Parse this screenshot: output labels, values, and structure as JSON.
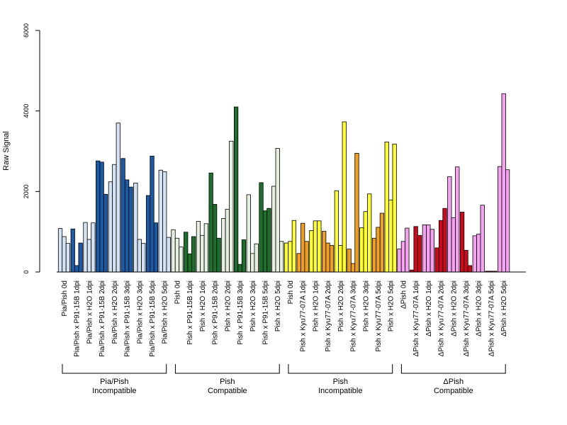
{
  "chart_data": {
    "type": "bar",
    "ylabel": "Raw Signal",
    "xlabel": "",
    "title": "",
    "ylim": [
      0,
      6000
    ],
    "yticks": [
      0,
      2000,
      4000,
      6000
    ],
    "bars_per_category": 3,
    "categories": [
      {
        "label": "Pia/Pish 0d",
        "values": [
          1080,
          880,
          710
        ],
        "color": "#d3e3f3"
      },
      {
        "label": "Pia/Pish x P91-15B 1dpi",
        "values": [
          1070,
          160,
          720
        ],
        "color": "#1c5aa6"
      },
      {
        "label": "Pia/Pish x H2O 1dpi",
        "values": [
          1230,
          810,
          1220
        ],
        "color": "#d3e3f3"
      },
      {
        "label": "Pia/Pish x P91-15B 2dpi",
        "values": [
          2760,
          2730,
          1930
        ],
        "color": "#1c5aa6"
      },
      {
        "label": "Pia/Pish x H2O 2dpi",
        "values": [
          2240,
          2670,
          3700
        ],
        "color": "#d3e3f3"
      },
      {
        "label": "Pia/Pish x P91-15B 3dpi",
        "values": [
          2820,
          2290,
          2110
        ],
        "color": "#1c5aa6"
      },
      {
        "label": "Pia/Pish x H2O 3dpi",
        "values": [
          2210,
          810,
          710
        ],
        "color": "#d3e3f3"
      },
      {
        "label": "Pia/Pish x P91-15B 5dpi",
        "values": [
          1900,
          2880,
          1220
        ],
        "color": "#1c5aa6"
      },
      {
        "label": "Pia/Pish x H2O 5dpi",
        "values": [
          2530,
          2490,
          860
        ],
        "color": "#d3e3f3"
      },
      {
        "label": "Pish 0d",
        "values": [
          1050,
          840,
          620
        ],
        "color": "#e5f0e1"
      },
      {
        "label": "Pish x P91-15B 1dpi",
        "values": [
          990,
          450,
          880
        ],
        "color": "#1e6e2e"
      },
      {
        "label": "Pish x H2O 1dpi",
        "values": [
          1260,
          910,
          1200
        ],
        "color": "#e5f0e1"
      },
      {
        "label": "Pish x P91-15B 2dpi",
        "values": [
          2460,
          1680,
          840
        ],
        "color": "#1e6e2e"
      },
      {
        "label": "Pish x H2O 2dpi",
        "values": [
          1330,
          1560,
          3250
        ],
        "color": "#e5f0e1"
      },
      {
        "label": "Pish x P91-15B 3dpi",
        "values": [
          4100,
          190,
          800
        ],
        "color": "#1e6e2e"
      },
      {
        "label": "Pish x H2O 3dpi",
        "values": [
          1920,
          460,
          700
        ],
        "color": "#e5f0e1"
      },
      {
        "label": "Pish x P91-15B 5dpi",
        "values": [
          2220,
          1520,
          1580
        ],
        "color": "#1e6e2e"
      },
      {
        "label": "Pish x H2O 5dpi",
        "values": [
          2130,
          3070,
          760
        ],
        "color": "#e5f0e1"
      },
      {
        "label": "Pish 0d",
        "values": [
          720,
          760,
          1280
        ],
        "color": "#ffff33"
      },
      {
        "label": "Pish x Kyu77-07A 1dpi",
        "values": [
          460,
          1210,
          760
        ],
        "color": "#f0a020"
      },
      {
        "label": "Pish x H2O 1dpi",
        "values": [
          1030,
          1270,
          1270
        ],
        "color": "#ffff33"
      },
      {
        "label": "Pish x Kyu77-07A 2dpi",
        "values": [
          1010,
          720,
          660
        ],
        "color": "#f0a020"
      },
      {
        "label": "Pish x H2O 2dpi",
        "values": [
          2020,
          660,
          3730
        ],
        "color": "#ffff33"
      },
      {
        "label": "Pish x Kyu77-07A 3dpi",
        "values": [
          570,
          210,
          2950
        ],
        "color": "#f0a020"
      },
      {
        "label": "Pish x H2O 3dpi",
        "values": [
          1100,
          1500,
          1940
        ],
        "color": "#ffff33"
      },
      {
        "label": "Pish x Kyu77-07A 5dpi",
        "values": [
          840,
          1110,
          1460
        ],
        "color": "#f0a020"
      },
      {
        "label": "Pish x H2O 5dpi",
        "values": [
          3230,
          1790,
          3180
        ],
        "color": "#ffff33"
      },
      {
        "label": "ΔPish 0d",
        "values": [
          570,
          760,
          1090
        ],
        "color": "#f5a3f0"
      },
      {
        "label": "ΔPish x Kyu77-07A 1dpi",
        "values": [
          50,
          1130,
          910
        ],
        "color": "#cc0a1e"
      },
      {
        "label": "ΔPish x H2O 1dpi",
        "values": [
          1170,
          1170,
          1060
        ],
        "color": "#f5a3f0"
      },
      {
        "label": "ΔPish x Kyu77-07A 2dpi",
        "values": [
          600,
          1280,
          1580
        ],
        "color": "#cc0a1e"
      },
      {
        "label": "ΔPish x H2O 2dpi",
        "values": [
          2370,
          1350,
          2610
        ],
        "color": "#f5a3f0"
      },
      {
        "label": "ΔPish x Kyu77-07A 3dpi",
        "values": [
          1490,
          540,
          160
        ],
        "color": "#cc0a1e"
      },
      {
        "label": "ΔPish x H2O 3dpi",
        "values": [
          900,
          940,
          1660
        ],
        "color": "#f5a3f0"
      },
      {
        "label": "ΔPish x Kyu77-07A 5dpi",
        "values": [
          20,
          20,
          20
        ],
        "color": "#cc0a1e"
      },
      {
        "label": "ΔPish x H2O 5dpi",
        "values": [
          2620,
          4430,
          2540
        ],
        "color": "#f5a3f0"
      }
    ],
    "groups": [
      {
        "line1": "Pia/Pish",
        "line2": "Incompatible",
        "start": 0,
        "end": 8
      },
      {
        "line1": "Pish",
        "line2": "Compatible",
        "start": 9,
        "end": 17
      },
      {
        "line1": "Pish",
        "line2": "Incompatible",
        "start": 18,
        "end": 26
      },
      {
        "line1": "ΔPish",
        "line2": "Compatible",
        "start": 27,
        "end": 35
      }
    ]
  }
}
